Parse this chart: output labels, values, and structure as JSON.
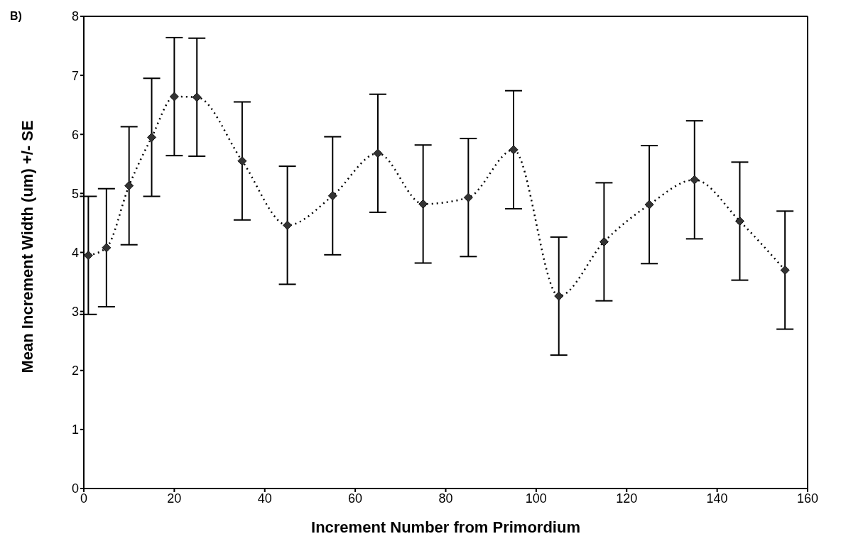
{
  "chart_data": {
    "type": "line",
    "xlabel": "Increment Number from Primordium",
    "ylabel": "Mean Increment Width (um) +/- SE",
    "annotations": [
      "B)"
    ],
    "x": [
      1,
      5,
      10,
      15,
      20,
      25,
      35,
      45,
      55,
      65,
      75,
      85,
      95,
      105,
      115,
      125,
      135,
      145,
      155
    ],
    "series": [
      {
        "color": "#333333",
        "values": [
          3.95,
          4.08,
          5.13,
          5.95,
          6.64,
          6.63,
          5.55,
          4.46,
          4.96,
          5.68,
          4.82,
          4.93,
          5.74,
          3.26,
          4.18,
          4.81,
          5.23,
          4.53,
          3.7
        ],
        "errors": [
          1,
          1,
          1,
          1,
          1,
          1,
          1,
          1,
          1,
          1,
          1,
          1,
          1,
          1,
          1,
          1,
          1,
          1,
          1
        ]
      }
    ],
    "xlim": [
      0,
      160
    ],
    "xticks": [
      0,
      20,
      40,
      60,
      80,
      100,
      120,
      140,
      160
    ],
    "ylim": [
      0,
      8
    ],
    "yticks": [
      0,
      1,
      2,
      3,
      4,
      5,
      6,
      7,
      8
    ],
    "grid": false,
    "legend": false,
    "marker": "diamond",
    "line_style": "dotted"
  }
}
